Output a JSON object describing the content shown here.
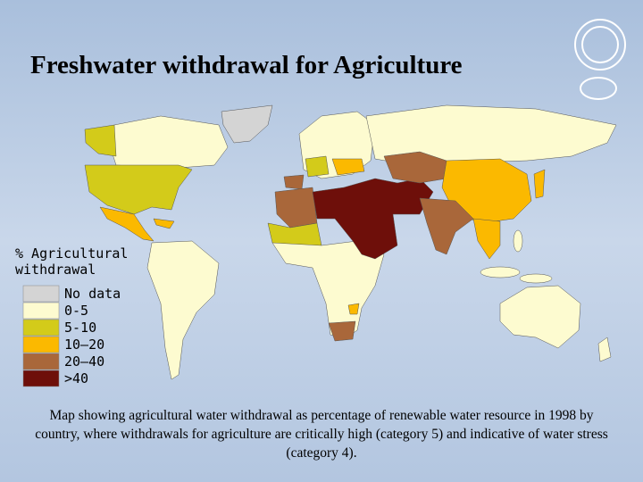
{
  "title": "Freshwater withdrawal for Agriculture",
  "legend": {
    "title": [
      "% Agricultural",
      "withdrawal"
    ],
    "items": [
      {
        "label": "No data",
        "color": "#d4d4d4"
      },
      {
        "label": "0-5",
        "color": "#fdfbd0"
      },
      {
        "label": "5-10",
        "color": "#d3cb1a"
      },
      {
        "label": "10–20",
        "color": "#fbb900"
      },
      {
        "label": "20–40",
        "color": "#a9673a"
      },
      {
        "label": ">40",
        "color": "#6e0f0a"
      }
    ]
  },
  "caption": "Map showing agricultural water withdrawal as percentage of renewable water resource in 1998 by country, where withdrawals for agriculture are critically high (category 5) and indicative of water stress (category 4)."
}
